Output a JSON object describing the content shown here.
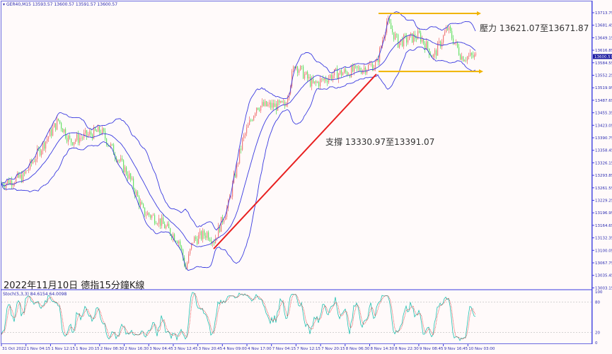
{
  "header": {
    "symbol": "GER40,M15",
    "ohlc": "13593.57 13600.57 13591.57 13600.57"
  },
  "caption": "2022年11月10日 德指15分鐘K線",
  "annotations": {
    "resistance": "壓力 13621.07至13671.87",
    "support": "支撐 13330.97至13391.07"
  },
  "stoch": {
    "label": "Stoch(5,3,3) 84.6154 64.0098",
    "levels": [
      "100",
      "80",
      "20",
      "0"
    ]
  },
  "price_axis": [
    "13713.75",
    "13681.45",
    "13649.15",
    "13616.85",
    "13584.55",
    "13552.25",
    "13519.95",
    "13487.65",
    "13455.35",
    "13423.05",
    "13390.75",
    "13358.45",
    "13326.15",
    "13293.85",
    "13261.55",
    "13229.25",
    "13196.95",
    "13164.65",
    "13132.35",
    "13100.05",
    "13067.75",
    "13035.45",
    "13003.15"
  ],
  "current_price": "13600.57",
  "time_axis": [
    "31 Oct 2022",
    "1 Nov 04:15",
    "1 Nov 12:15",
    "1 Nov 20:15",
    "2 Nov 08:30",
    "2 Nov 16:30",
    "3 Nov 04:45",
    "3 Nov 12:45",
    "3 Nov 20:45",
    "4 Nov 09:00",
    "4 Nov 17:00",
    "7 Nov 04:15",
    "7 Nov 12:15",
    "7 Nov 20:15",
    "8 Nov 06:30",
    "8 Nov 14:30",
    "8 Nov 22:30",
    "9 Nov 08:45",
    "9 Nov 16:45",
    "10 Nov 03:00"
  ],
  "colors": {
    "up": "#f07a7a",
    "down": "#66e066",
    "bands": "#3a3ae0",
    "support_line": "#e82020",
    "resistance_line": "#f0b400",
    "price_tag": "#1a1aa0",
    "stoch_main": "#20c0b0",
    "stoch_signal": "#e03030"
  },
  "chart_data": {
    "type": "candlestick",
    "ylim": [
      13003.15,
      13713.75
    ],
    "indicators": [
      "Bollinger Bands",
      "Stochastic(5,3,3)"
    ],
    "price_path": [
      [
        0,
        13272
      ],
      [
        15,
        13290
      ],
      [
        40,
        13436
      ],
      [
        48,
        13382
      ],
      [
        70,
        13409
      ],
      [
        90,
        13290
      ],
      [
        100,
        13199
      ],
      [
        110,
        13181
      ],
      [
        125,
        13126
      ],
      [
        130,
        13053
      ],
      [
        135,
        13126
      ],
      [
        145,
        13144
      ],
      [
        150,
        13126
      ],
      [
        160,
        13217
      ],
      [
        170,
        13382
      ],
      [
        180,
        13473
      ],
      [
        200,
        13473
      ],
      [
        207,
        13582
      ],
      [
        220,
        13527
      ],
      [
        235,
        13555
      ],
      [
        250,
        13564
      ],
      [
        265,
        13582
      ],
      [
        272,
        13692
      ],
      [
        280,
        13637
      ],
      [
        295,
        13655
      ],
      [
        305,
        13600
      ],
      [
        315,
        13673
      ],
      [
        325,
        13600
      ],
      [
        335,
        13600
      ]
    ],
    "support_line": {
      "from": [
        150,
        13104
      ],
      "to": [
        265,
        13555
      ]
    },
    "resistance_lines": [
      13712,
      13562
    ]
  }
}
